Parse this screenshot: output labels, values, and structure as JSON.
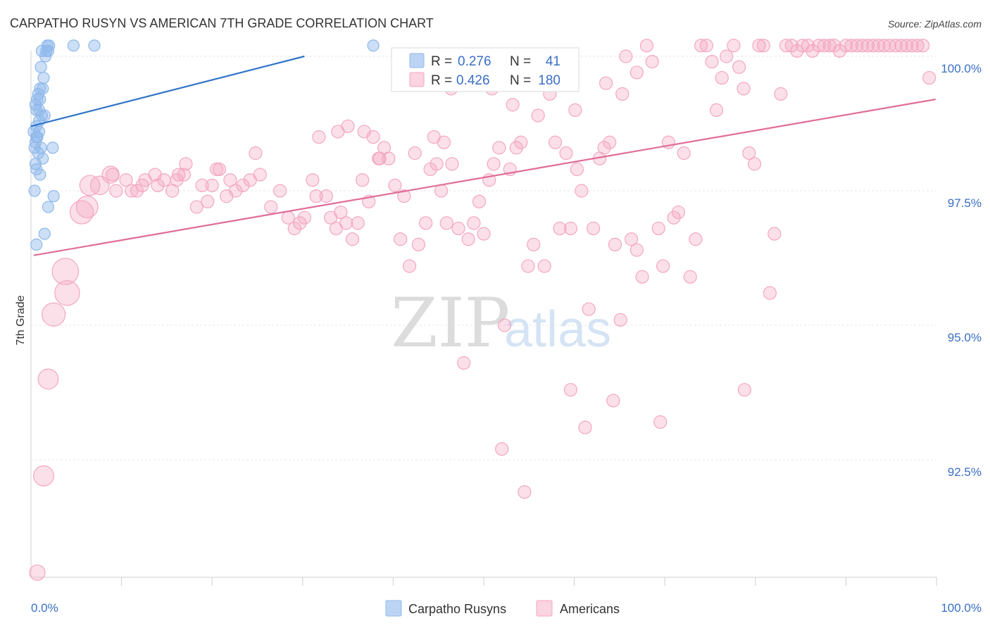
{
  "chart_data": {
    "type": "scatter",
    "title": "CARPATHO RUSYN VS AMERICAN 7TH GRADE CORRELATION CHART",
    "source": "Source: ZipAtlas.com",
    "ylabel": "7th Grade",
    "xlabel": "",
    "xlim": [
      0,
      100
    ],
    "ylim": [
      90.2,
      100.35
    ],
    "y_ticks": [
      {
        "value": 100.0,
        "label": "100.0%"
      },
      {
        "value": 97.5,
        "label": "97.5%"
      },
      {
        "value": 95.0,
        "label": "95.0%"
      },
      {
        "value": 92.5,
        "label": "92.5%"
      }
    ],
    "x_tick_labels": {
      "left": "0.0%",
      "right": "100.0%"
    },
    "watermark": {
      "zip": "ZIP",
      "atlas": "atlas"
    },
    "legend": [
      {
        "r_label": "R =",
        "r_value": "0.276",
        "n_label": "N =",
        "n_value": "41",
        "color": "#8fb8ea"
      },
      {
        "r_label": "R =",
        "r_value": "0.426",
        "n_label": "N =",
        "n_value": "180",
        "color": "#f4a6c1"
      }
    ],
    "series": [
      {
        "name": "Carpatho Rusyns",
        "color": "#8fb8ea",
        "line_color": "#2f74c8",
        "trend": [
          [
            0,
            98.7
          ],
          [
            30.2,
            100.0
          ]
        ],
        "points": [
          [
            0.3,
            98.6
          ],
          [
            0.5,
            98.4
          ],
          [
            0.6,
            98.5
          ],
          [
            0.4,
            98.3
          ],
          [
            0.8,
            98.2
          ],
          [
            0.7,
            98.5
          ],
          [
            0.9,
            98.6
          ],
          [
            0.5,
            98.0
          ],
          [
            0.6,
            97.9
          ],
          [
            1.0,
            97.8
          ],
          [
            0.4,
            97.5
          ],
          [
            1.9,
            97.2
          ],
          [
            2.5,
            97.4
          ],
          [
            1.5,
            96.7
          ],
          [
            0.6,
            96.5
          ],
          [
            1.1,
            98.3
          ],
          [
            2.4,
            98.3
          ],
          [
            0.6,
            99.0
          ],
          [
            0.9,
            99.0
          ],
          [
            1.2,
            98.9
          ],
          [
            1.5,
            98.9
          ],
          [
            0.8,
            99.3
          ],
          [
            1.0,
            99.4
          ],
          [
            1.3,
            99.4
          ],
          [
            1.4,
            99.6
          ],
          [
            1.1,
            99.8
          ],
          [
            1.6,
            100.0
          ],
          [
            1.2,
            100.1
          ],
          [
            1.7,
            100.1
          ],
          [
            1.8,
            100.2
          ],
          [
            2.0,
            100.2
          ],
          [
            1.9,
            100.1
          ],
          [
            4.7,
            100.2
          ],
          [
            7.0,
            100.2
          ],
          [
            37.8,
            100.2
          ],
          [
            0.7,
            99.2
          ],
          [
            1.0,
            99.2
          ],
          [
            0.5,
            99.1
          ],
          [
            0.9,
            98.8
          ],
          [
            1.3,
            98.1
          ],
          [
            0.6,
            98.7
          ]
        ]
      },
      {
        "name": "Americans",
        "color": "#f4a6c1",
        "line_color": "#e06c98",
        "trend": [
          [
            0.3,
            96.3
          ],
          [
            99.9,
            99.2
          ]
        ],
        "points": [
          [
            0.7,
            90.4
          ],
          [
            1.4,
            92.2
          ],
          [
            1.9,
            94.0
          ],
          [
            2.5,
            95.2
          ],
          [
            3.8,
            96.0
          ],
          [
            4.0,
            95.6
          ],
          [
            5.6,
            97.1
          ],
          [
            6.2,
            97.2
          ],
          [
            6.5,
            97.6
          ],
          [
            7.6,
            97.6
          ],
          [
            8.8,
            97.8
          ],
          [
            9.0,
            97.8
          ],
          [
            9.4,
            97.5
          ],
          [
            10.5,
            97.7
          ],
          [
            11.1,
            97.5
          ],
          [
            11.7,
            97.5
          ],
          [
            12.3,
            97.6
          ],
          [
            12.6,
            97.7
          ],
          [
            13.7,
            97.8
          ],
          [
            14.0,
            97.6
          ],
          [
            14.7,
            97.7
          ],
          [
            15.6,
            97.5
          ],
          [
            16.3,
            97.8
          ],
          [
            16.9,
            97.8
          ],
          [
            17.1,
            98.0
          ],
          [
            16.1,
            97.7
          ],
          [
            18.3,
            97.2
          ],
          [
            18.9,
            97.6
          ],
          [
            19.5,
            97.3
          ],
          [
            20.0,
            97.6
          ],
          [
            20.5,
            97.9
          ],
          [
            20.8,
            97.9
          ],
          [
            21.6,
            97.4
          ],
          [
            22.0,
            97.7
          ],
          [
            22.6,
            97.5
          ],
          [
            23.4,
            97.6
          ],
          [
            24.2,
            97.7
          ],
          [
            24.8,
            98.2
          ],
          [
            25.3,
            97.8
          ],
          [
            26.5,
            97.2
          ],
          [
            27.5,
            97.5
          ],
          [
            28.4,
            97.0
          ],
          [
            29.1,
            96.8
          ],
          [
            29.7,
            96.9
          ],
          [
            30.2,
            97.0
          ],
          [
            31.1,
            97.7
          ],
          [
            31.5,
            97.4
          ],
          [
            32.6,
            97.4
          ],
          [
            33.1,
            97.0
          ],
          [
            33.7,
            96.8
          ],
          [
            34.2,
            97.1
          ],
          [
            34.8,
            96.9
          ],
          [
            35.5,
            96.6
          ],
          [
            36.1,
            96.9
          ],
          [
            36.6,
            97.7
          ],
          [
            37.3,
            97.3
          ],
          [
            37.8,
            98.5
          ],
          [
            38.4,
            98.1
          ],
          [
            39.0,
            98.3
          ],
          [
            39.5,
            98.1
          ],
          [
            40.2,
            97.6
          ],
          [
            40.8,
            96.6
          ],
          [
            41.2,
            97.4
          ],
          [
            41.8,
            96.1
          ],
          [
            42.4,
            98.2
          ],
          [
            42.8,
            96.5
          ],
          [
            43.6,
            96.9
          ],
          [
            44.1,
            97.9
          ],
          [
            44.8,
            98.0
          ],
          [
            45.3,
            97.5
          ],
          [
            45.9,
            96.9
          ],
          [
            46.5,
            98.0
          ],
          [
            47.2,
            96.8
          ],
          [
            47.8,
            94.3
          ],
          [
            48.3,
            96.6
          ],
          [
            48.9,
            96.9
          ],
          [
            49.5,
            97.3
          ],
          [
            50.0,
            96.7
          ],
          [
            50.6,
            97.7
          ],
          [
            51.1,
            98.0
          ],
          [
            51.7,
            98.3
          ],
          [
            52.3,
            95.0
          ],
          [
            52.9,
            97.9
          ],
          [
            53.6,
            98.3
          ],
          [
            54.1,
            98.4
          ],
          [
            54.9,
            96.1
          ],
          [
            55.5,
            96.5
          ],
          [
            56.0,
            98.9
          ],
          [
            56.7,
            96.1
          ],
          [
            57.3,
            99.3
          ],
          [
            57.9,
            98.4
          ],
          [
            58.4,
            96.8
          ],
          [
            59.1,
            98.2
          ],
          [
            59.6,
            96.8
          ],
          [
            60.3,
            97.9
          ],
          [
            60.8,
            97.5
          ],
          [
            61.6,
            95.3
          ],
          [
            62.1,
            96.8
          ],
          [
            62.8,
            98.1
          ],
          [
            63.3,
            98.3
          ],
          [
            63.9,
            98.4
          ],
          [
            64.5,
            96.5
          ],
          [
            65.1,
            95.1
          ],
          [
            65.7,
            100.0
          ],
          [
            66.3,
            96.6
          ],
          [
            66.9,
            96.4
          ],
          [
            67.5,
            95.9
          ],
          [
            68.0,
            100.2
          ],
          [
            68.6,
            99.9
          ],
          [
            69.3,
            96.8
          ],
          [
            69.8,
            96.1
          ],
          [
            70.4,
            98.4
          ],
          [
            71.0,
            97.0
          ],
          [
            71.5,
            97.1
          ],
          [
            72.1,
            98.2
          ],
          [
            72.8,
            95.9
          ],
          [
            73.4,
            96.6
          ],
          [
            74.0,
            100.2
          ],
          [
            74.6,
            100.2
          ],
          [
            75.2,
            99.9
          ],
          [
            75.7,
            99.0
          ],
          [
            76.3,
            99.6
          ],
          [
            76.8,
            100.0
          ],
          [
            77.6,
            100.2
          ],
          [
            78.2,
            99.8
          ],
          [
            78.7,
            99.4
          ],
          [
            79.3,
            98.2
          ],
          [
            79.9,
            98.0
          ],
          [
            80.4,
            100.2
          ],
          [
            80.9,
            100.2
          ],
          [
            81.6,
            95.6
          ],
          [
            82.1,
            96.7
          ],
          [
            82.8,
            99.3
          ],
          [
            83.4,
            100.2
          ],
          [
            84.0,
            100.2
          ],
          [
            84.6,
            100.1
          ],
          [
            85.2,
            100.2
          ],
          [
            85.8,
            100.2
          ],
          [
            86.3,
            100.1
          ],
          [
            87.0,
            100.2
          ],
          [
            87.6,
            100.2
          ],
          [
            88.2,
            100.2
          ],
          [
            88.7,
            100.2
          ],
          [
            89.3,
            100.1
          ],
          [
            90.0,
            100.2
          ],
          [
            90.6,
            100.2
          ],
          [
            91.2,
            100.2
          ],
          [
            91.8,
            100.2
          ],
          [
            92.4,
            100.2
          ],
          [
            93.0,
            100.2
          ],
          [
            93.6,
            100.2
          ],
          [
            94.2,
            100.2
          ],
          [
            94.8,
            100.2
          ],
          [
            95.5,
            100.2
          ],
          [
            96.1,
            100.2
          ],
          [
            96.7,
            100.2
          ],
          [
            97.3,
            100.2
          ],
          [
            97.9,
            100.2
          ],
          [
            98.5,
            100.2
          ],
          [
            99.2,
            99.6
          ],
          [
            46.4,
            99.4
          ],
          [
            52.0,
            92.7
          ],
          [
            54.5,
            91.9
          ],
          [
            59.6,
            93.8
          ],
          [
            61.2,
            93.1
          ],
          [
            64.3,
            93.6
          ],
          [
            69.5,
            93.2
          ],
          [
            78.8,
            93.8
          ],
          [
            31.8,
            98.5
          ],
          [
            33.9,
            98.6
          ],
          [
            35.0,
            98.7
          ],
          [
            36.8,
            98.6
          ],
          [
            38.5,
            98.1
          ],
          [
            44.5,
            98.5
          ],
          [
            45.6,
            98.4
          ],
          [
            49.3,
            99.5
          ],
          [
            50.9,
            99.4
          ],
          [
            53.2,
            99.1
          ],
          [
            60.1,
            99.0
          ],
          [
            63.5,
            99.5
          ],
          [
            65.3,
            99.3
          ],
          [
            66.9,
            99.7
          ]
        ],
        "sizes": {
          "0": 1,
          "1": 1.3,
          "2": 1.3,
          "3": 1.5,
          "4": 1.7,
          "5": 1.6,
          "6": 1.5,
          "7": 1.4,
          "8": 1.3,
          "9": 1.2,
          "10": 1.1
        }
      }
    ],
    "bottom_legend": [
      "Carpatho Rusyns",
      "Americans"
    ]
  }
}
